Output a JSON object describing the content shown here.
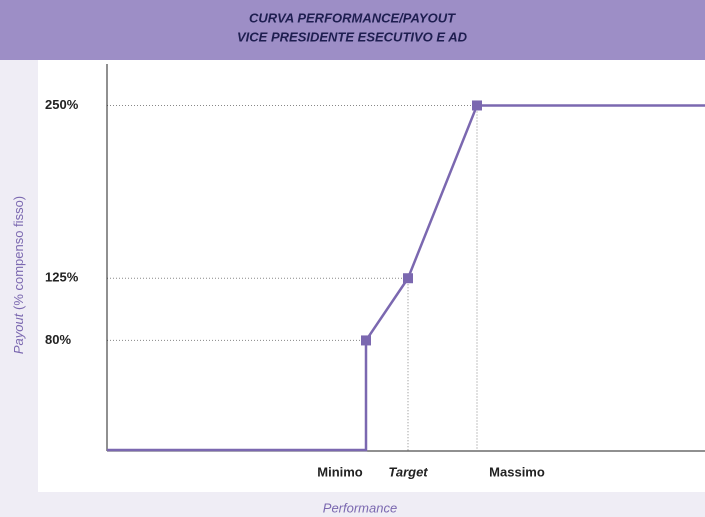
{
  "chart_data": {
    "type": "line",
    "title": [
      "CURVA PERFORMANCE/PAYOUT",
      "VICE PRESIDENTE ESECUTIVO E AD"
    ],
    "y_label": [
      "Payout",
      "(% compenso fisso)"
    ],
    "x_label": "Performance",
    "categories": [
      "Minimo",
      "Target",
      "Massimo"
    ],
    "series": [
      {
        "name": "Payout",
        "color": "#7b68b0",
        "values": [
          80,
          125,
          250
        ]
      }
    ],
    "ylim": [
      0,
      280
    ],
    "yticks": [
      {
        "value": 80,
        "label": "80%"
      },
      {
        "value": 125,
        "label": "125%"
      },
      {
        "value": 250,
        "label": "250%"
      }
    ],
    "grid": true
  }
}
